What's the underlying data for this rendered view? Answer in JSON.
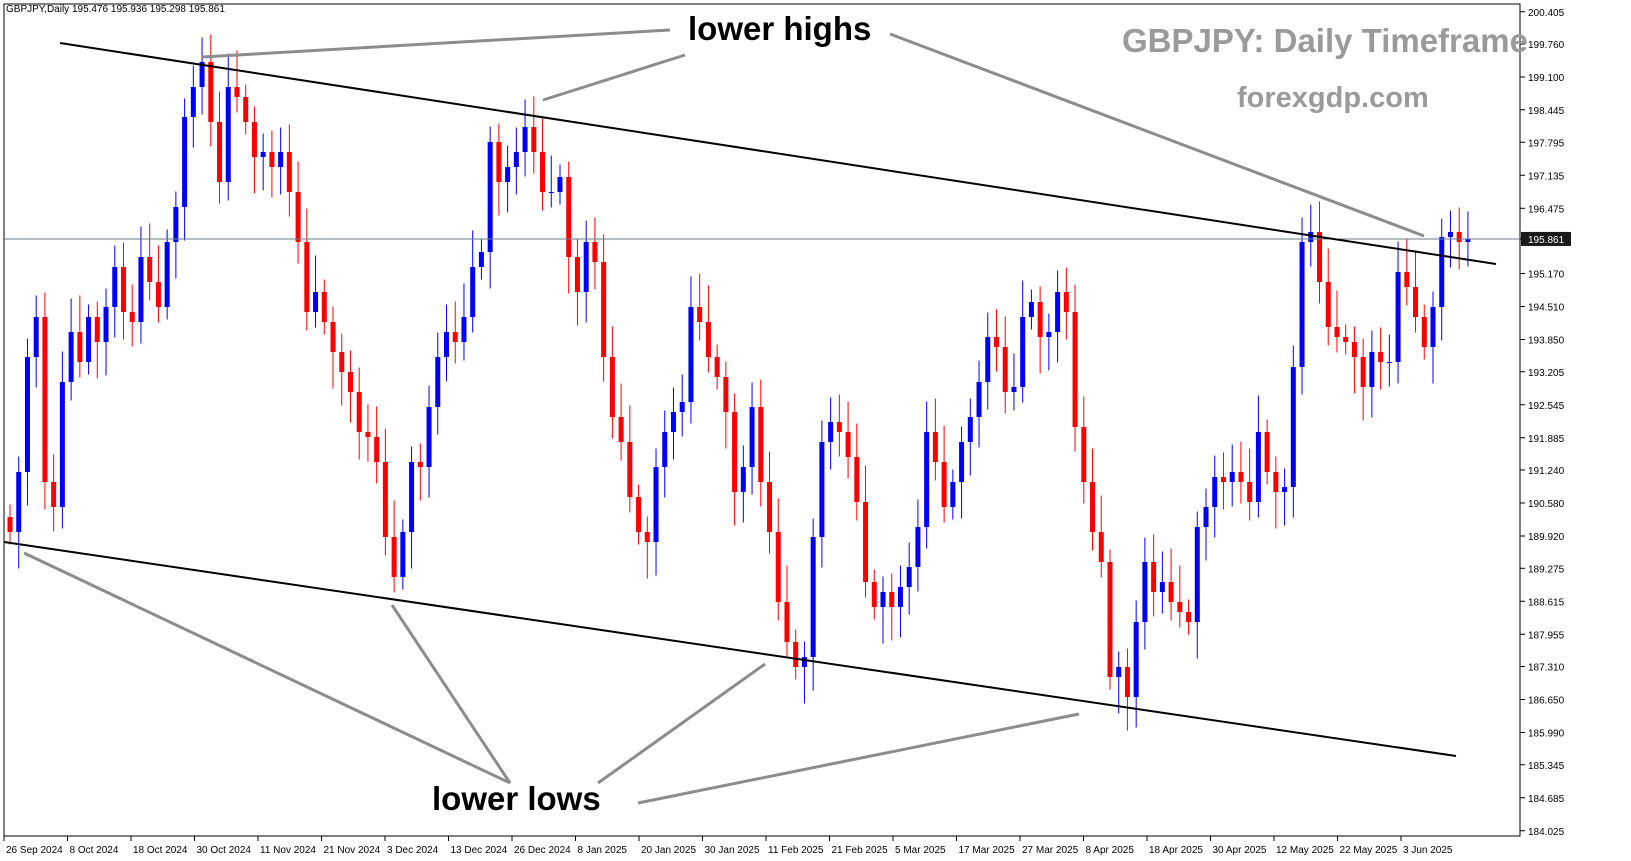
{
  "header": {
    "symbol_info": "GBPJPY,Daily  195.476 195.936 195.298 195.861"
  },
  "title": "GBPJPY: Daily Timeframe",
  "subtitle": "forexgdp.com",
  "annotations": {
    "top": "lower highs",
    "bottom": "lower lows"
  },
  "colors": {
    "bull": "#0000ff",
    "bear": "#ff0000",
    "trendline": "#000000",
    "pointer": "#8c8c8c",
    "price_line": "#6a7a8a"
  },
  "chart_data": {
    "type": "candlestick",
    "symbol": "GBPJPY",
    "timeframe": "Daily",
    "ylim": [
      184.0,
      200.4
    ],
    "yticks": [
      "200.405",
      "199.760",
      "199.100",
      "198.445",
      "197.795",
      "197.135",
      "196.475",
      "195.861",
      "195.170",
      "194.510",
      "193.850",
      "193.205",
      "192.545",
      "191.885",
      "191.240",
      "190.580",
      "189.920",
      "189.275",
      "188.615",
      "187.955",
      "187.310",
      "186.650",
      "185.990",
      "185.345",
      "184.685",
      "184.025"
    ],
    "xticks": [
      "26 Sep 2024",
      "8 Oct 2024",
      "18 Oct 2024",
      "30 Oct 2024",
      "11 Nov 2024",
      "21 Nov 2024",
      "3 Dec 2024",
      "13 Dec 2024",
      "26 Dec 2024",
      "8 Jan 2025",
      "20 Jan 2025",
      "30 Jan 2025",
      "11 Feb 2025",
      "21 Feb 2025",
      "5 Mar 2025",
      "17 Mar 2025",
      "27 Mar 2025",
      "8 Apr 2025",
      "18 Apr 2025",
      "30 Apr 2025",
      "12 May 2025",
      "22 May 2025",
      "3 Jun 2025"
    ],
    "last_price": 195.861,
    "last_price_label": "195.861",
    "closes": [
      190.0,
      191.2,
      193.5,
      194.3,
      191.0,
      190.5,
      193.0,
      194.0,
      193.4,
      194.3,
      193.8,
      194.5,
      195.3,
      194.4,
      194.2,
      195.5,
      195.0,
      194.5,
      195.8,
      196.5,
      198.3,
      198.9,
      199.4,
      198.2,
      197.0,
      198.9,
      198.7,
      198.2,
      197.5,
      197.6,
      197.3,
      197.6,
      196.8,
      195.8,
      194.4,
      194.8,
      194.2,
      193.6,
      193.2,
      192.8,
      192.0,
      191.9,
      191.4,
      189.9,
      189.1,
      190.0,
      191.4,
      191.3,
      192.5,
      193.5,
      194.0,
      193.8,
      194.3,
      195.3,
      195.6,
      197.8,
      197.0,
      197.3,
      197.6,
      198.1,
      197.6,
      196.8,
      196.8,
      197.1,
      195.5,
      194.8,
      195.8,
      195.4,
      193.5,
      192.3,
      191.8,
      190.7,
      190.0,
      189.8,
      191.3,
      192.0,
      192.4,
      192.6,
      194.5,
      194.2,
      193.5,
      193.1,
      192.4,
      190.8,
      191.3,
      192.5,
      191.0,
      190.0,
      188.6,
      187.8,
      187.3,
      187.5,
      189.9,
      191.8,
      192.2,
      192.0,
      191.5,
      190.6,
      189.0,
      188.5,
      188.8,
      188.5,
      188.9,
      189.3,
      190.1,
      192.0,
      191.4,
      190.5,
      191.0,
      191.8,
      192.3,
      193.0,
      193.9,
      193.7,
      192.8,
      192.9,
      194.3,
      194.6,
      193.9,
      194.0,
      194.8,
      194.4,
      192.1,
      191.0,
      190.0,
      189.4,
      187.1,
      187.3,
      186.7,
      188.2,
      189.4,
      188.8,
      189.0,
      188.6,
      188.4,
      188.2,
      190.1,
      190.5,
      191.1,
      191.0,
      191.2,
      191.0,
      190.6,
      192.0,
      191.2,
      190.8,
      190.9,
      193.3,
      195.8,
      196.0,
      195.0,
      194.1,
      193.9,
      193.8,
      193.5,
      192.9,
      193.6,
      193.4,
      193.4,
      195.2,
      194.9,
      194.3,
      193.7,
      194.5,
      195.9,
      196.0,
      195.8,
      195.861
    ]
  }
}
